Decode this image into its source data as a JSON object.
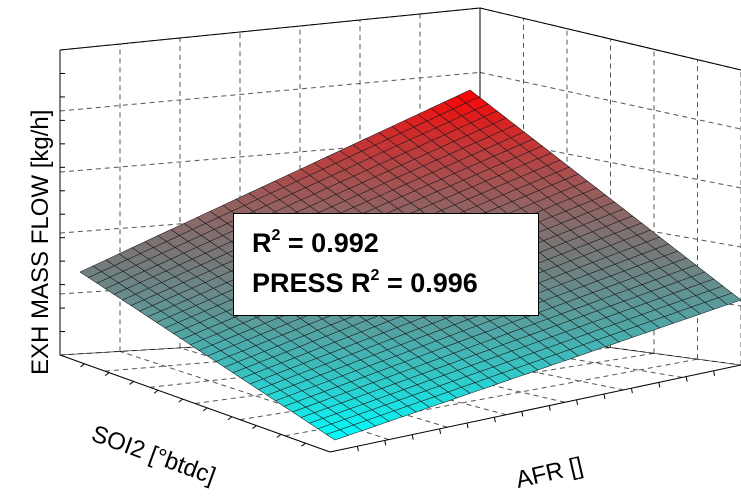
{
  "chart_data": {
    "type": "surface",
    "zlabel": "EXH MASS FLOW [kg/h]",
    "xlabel": "AFR []",
    "ylabel": "SOI2 [°btdc]",
    "annotation": {
      "r2_label": "R",
      "r2_sup": "2",
      "r2_value": " = 0.992",
      "press_label": "PRESS R",
      "press_sup": "2",
      "press_value": " = 0.996"
    },
    "surface": {
      "grid_resolution": 30,
      "corner_values": {
        "low_afr_low_soi2": 0.0,
        "high_afr_low_soi2": 0.33,
        "low_afr_high_soi2": 0.45,
        "high_afr_high_soi2": 1.0
      },
      "colormap": {
        "low": "#00ffff",
        "high": "#ff0000"
      }
    },
    "grid": true
  }
}
